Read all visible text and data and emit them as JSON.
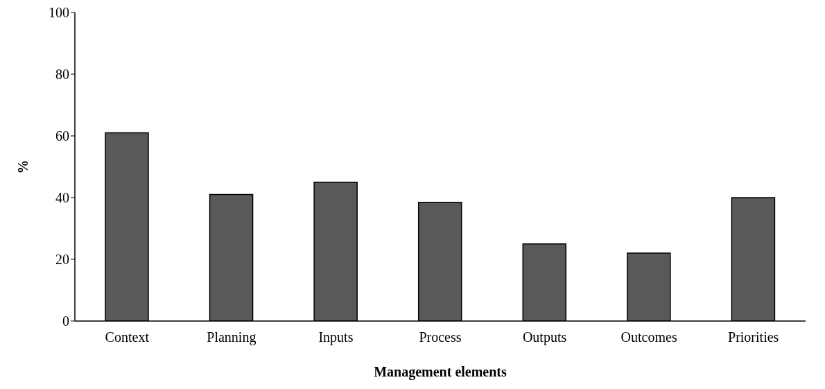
{
  "chart_data": {
    "type": "bar",
    "xlabel": "Management elements",
    "ylabel": "%",
    "categories": [
      "Context",
      "Planning",
      "Inputs",
      "Process",
      "Outputs",
      "Outcomes",
      "Priorities"
    ],
    "values": [
      61,
      41,
      45,
      38.5,
      25,
      22,
      40
    ],
    "color": "#595959",
    "ylim": [
      0,
      100
    ],
    "yticks": [
      0,
      20,
      40,
      60,
      80,
      100
    ],
    "grid": false
  }
}
